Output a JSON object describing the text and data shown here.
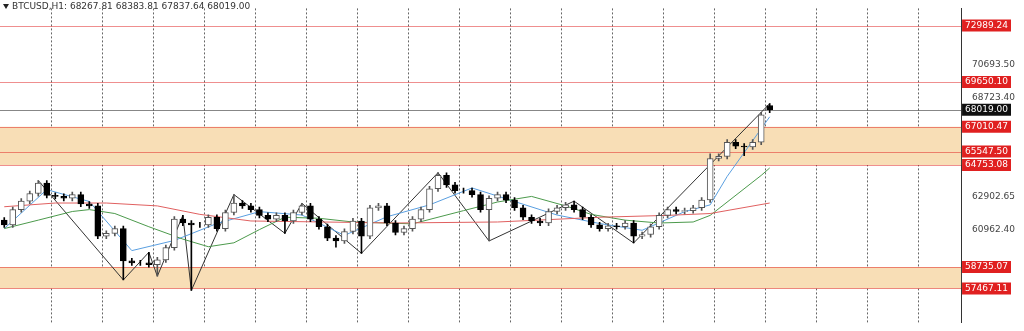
{
  "chart_data": {
    "type": "candlestick",
    "title": "BTCUSD,H1: 68267.81 68383.81 67837.64 68019.00",
    "categories": [
      null,
      null,
      null,
      null,
      null,
      null,
      null,
      null,
      null,
      null,
      null,
      null,
      null,
      null,
      null,
      null,
      null,
      null,
      null,
      null,
      null,
      null,
      null,
      null,
      null,
      null,
      null,
      null,
      null,
      null,
      null,
      null,
      null,
      null,
      null,
      null,
      null,
      null,
      null,
      null,
      null,
      null,
      null,
      null,
      null,
      null,
      null,
      null,
      null,
      null,
      null,
      null,
      null,
      null,
      null,
      null,
      null,
      null,
      null,
      null,
      null,
      null,
      null,
      null,
      null,
      null,
      null,
      null,
      null,
      null,
      null,
      null,
      null,
      null,
      null,
      null,
      null,
      null,
      null,
      null,
      null,
      null,
      null,
      null,
      null,
      null,
      null,
      null,
      null,
      null,
      null,
      null,
      null,
      null,
      null,
      null,
      null,
      null,
      null,
      null,
      null,
      null,
      null,
      null,
      null,
      null,
      null,
      null,
      null,
      null,
      null,
      null,
      null
    ],
    "ohlc": [
      [
        61500,
        61650,
        61070,
        61220
      ],
      [
        61220,
        62270,
        61070,
        62120
      ],
      [
        62120,
        62770,
        61970,
        62620
      ],
      [
        62620,
        63220,
        62470,
        63070
      ],
      [
        63070,
        63840,
        62920,
        63690
      ],
      [
        63690,
        63840,
        62810,
        62960
      ],
      [
        62960,
        63110,
        62750,
        62900
      ],
      [
        62900,
        63050,
        62640,
        62790
      ],
      [
        62790,
        63160,
        62640,
        63010
      ],
      [
        63010,
        63160,
        62300,
        62450
      ],
      [
        62450,
        62600,
        62190,
        62340
      ],
      [
        62340,
        62490,
        60400,
        60550
      ],
      [
        60550,
        60870,
        60400,
        60720
      ],
      [
        60720,
        61150,
        60570,
        61000
      ],
      [
        61000,
        61150,
        57970,
        59090
      ],
      [
        59090,
        59240,
        58830,
        58980
      ],
      [
        58980,
        59130,
        58830,
        58980
      ],
      [
        58980,
        59600,
        58720,
        58870
      ],
      [
        58870,
        59300,
        58190,
        59150
      ],
      [
        59150,
        60030,
        59000,
        59880
      ],
      [
        59880,
        61710,
        59730,
        61560
      ],
      [
        61560,
        61780,
        61180,
        61330
      ],
      [
        61330,
        61480,
        57350,
        61220
      ],
      [
        61220,
        61370,
        61070,
        61220
      ],
      [
        61220,
        61820,
        61070,
        61670
      ],
      [
        61670,
        61820,
        60850,
        61000
      ],
      [
        61000,
        62100,
        60850,
        61950
      ],
      [
        61950,
        63010,
        61800,
        62510
      ],
      [
        62510,
        62660,
        62190,
        62340
      ],
      [
        62340,
        62490,
        61970,
        62120
      ],
      [
        62120,
        62270,
        61630,
        61780
      ],
      [
        61780,
        61930,
        61410,
        61560
      ],
      [
        61560,
        61930,
        61410,
        61780
      ],
      [
        61780,
        61930,
        60720,
        61450
      ],
      [
        61450,
        62100,
        61300,
        61950
      ],
      [
        61950,
        62490,
        61800,
        62340
      ],
      [
        62340,
        62490,
        61410,
        61560
      ],
      [
        61560,
        61710,
        60960,
        61110
      ],
      [
        61110,
        61260,
        60290,
        60440
      ],
      [
        60440,
        60590,
        59900,
        60270
      ],
      [
        60270,
        60980,
        60120,
        60830
      ],
      [
        60830,
        61600,
        60680,
        61450
      ],
      [
        61450,
        61600,
        59540,
        60550
      ],
      [
        60550,
        62380,
        60400,
        62230
      ],
      [
        62230,
        62490,
        62080,
        62340
      ],
      [
        62340,
        62490,
        61180,
        61330
      ],
      [
        61330,
        61480,
        60620,
        60770
      ],
      [
        60770,
        61150,
        60620,
        61000
      ],
      [
        61000,
        61710,
        60850,
        61560
      ],
      [
        61560,
        62270,
        61410,
        62120
      ],
      [
        62120,
        63500,
        61970,
        63350
      ],
      [
        63350,
        64300,
        63200,
        64140
      ],
      [
        64140,
        64290,
        63430,
        63580
      ],
      [
        63580,
        63730,
        63090,
        63240
      ],
      [
        63240,
        63390,
        63090,
        63240
      ],
      [
        63240,
        63390,
        62860,
        63010
      ],
      [
        63010,
        63160,
        61970,
        62120
      ],
      [
        62120,
        62940,
        60270,
        62790
      ],
      [
        62790,
        63160,
        62640,
        63010
      ],
      [
        63010,
        63160,
        62530,
        62680
      ],
      [
        62680,
        62830,
        62080,
        62230
      ],
      [
        62230,
        62380,
        61520,
        61670
      ],
      [
        61670,
        61820,
        61300,
        61450
      ],
      [
        61450,
        61600,
        61180,
        61330
      ],
      [
        61330,
        62160,
        61180,
        62010
      ],
      [
        62010,
        62380,
        61860,
        62230
      ],
      [
        62230,
        62550,
        62080,
        62400
      ],
      [
        62400,
        62620,
        61970,
        62120
      ],
      [
        62120,
        62270,
        61520,
        61670
      ],
      [
        61670,
        61820,
        61070,
        61220
      ],
      [
        61220,
        61370,
        60850,
        61000
      ],
      [
        61000,
        61310,
        60850,
        61160
      ],
      [
        61160,
        61310,
        60960,
        61110
      ],
      [
        61110,
        61480,
        60960,
        61330
      ],
      [
        61330,
        61480,
        60150,
        60550
      ],
      [
        60550,
        60800,
        60400,
        60650
      ],
      [
        60650,
        61260,
        60500,
        61110
      ],
      [
        61110,
        61930,
        60960,
        61780
      ],
      [
        61780,
        62270,
        61630,
        62120
      ],
      [
        62120,
        62270,
        61860,
        62010
      ],
      [
        62010,
        62210,
        61860,
        62060
      ],
      [
        62060,
        62380,
        61910,
        62230
      ],
      [
        62230,
        62830,
        62080,
        62680
      ],
      [
        62700,
        65420,
        62550,
        65140
      ],
      [
        65140,
        65410,
        64990,
        65260
      ],
      [
        65260,
        66250,
        65110,
        66100
      ],
      [
        66100,
        66250,
        65720,
        65870
      ],
      [
        65870,
        66020,
        65310,
        65820
      ],
      [
        65820,
        66250,
        65670,
        66100
      ],
      [
        66100,
        67870,
        65950,
        67720
      ],
      [
        68267.81,
        68383.81,
        67837.64,
        68019.0
      ],
      null,
      null,
      null,
      null,
      null,
      null,
      null,
      null,
      null,
      null,
      null,
      null,
      null,
      null,
      null,
      null,
      null,
      null,
      null,
      null,
      null,
      null
    ],
    "colors": [
      "#000000",
      "#555555",
      "#555555",
      "#555555",
      "#555555",
      "#000000",
      "#000000",
      "#000000",
      "#555555",
      "#000000",
      "#000000",
      "#000000",
      "#555555",
      "#555555",
      "#000000",
      "#000000",
      "#000000",
      "#000000",
      "#555555",
      "#555555",
      "#555555",
      "#000000",
      "#000000",
      "#000000",
      "#555555",
      "#000000",
      "#555555",
      "#555555",
      "#000000",
      "#000000",
      "#000000",
      "#000000",
      "#555555",
      "#000000",
      "#555555",
      "#555555",
      "#000000",
      "#000000",
      "#000000",
      "#000000",
      "#555555",
      "#555555",
      "#000000",
      "#555555",
      "#555555",
      "#000000",
      "#000000",
      "#555555",
      "#555555",
      "#555555",
      "#555555",
      "#555555",
      "#000000",
      "#000000",
      "#000000",
      "#000000",
      "#000000",
      "#555555",
      "#555555",
      "#000000",
      "#000000",
      "#000000",
      "#000000",
      "#000000",
      "#555555",
      "#555555",
      "#555555",
      "#000000",
      "#000000",
      "#000000",
      "#000000",
      "#555555",
      "#000000",
      "#555555",
      "#000000",
      "#555555",
      "#555555",
      "#555555",
      "#555555",
      "#000000",
      "#555555",
      "#555555",
      "#555555",
      "#555555",
      "#555555",
      "#555555",
      "#000000",
      "#000000",
      "#555555",
      "#555555",
      "#000000",
      null,
      null,
      null,
      null,
      null,
      null,
      null,
      null,
      null,
      null,
      null,
      null,
      null,
      null,
      null,
      null,
      null,
      null,
      null,
      null,
      null,
      null
    ],
    "series": [
      {
        "type": "line",
        "color": "#e06060",
        "values": [
          62290,
          null,
          null,
          null,
          null,
          null,
          62510,
          null,
          null,
          null,
          null,
          null,
          62510,
          null,
          null,
          null,
          null,
          null,
          62340,
          null,
          null,
          null,
          null,
          61840,
          null,
          null,
          null,
          null,
          null,
          61450,
          null,
          null,
          null,
          null,
          null,
          null,
          null,
          null,
          null,
          null,
          null,
          null,
          null,
          null,
          null,
          null,
          61330,
          null,
          null,
          null,
          null,
          null,
          null,
          null,
          null,
          null,
          null,
          null,
          61390,
          null,
          null,
          null,
          null,
          null,
          null,
          null,
          null,
          null,
          null,
          null,
          61670,
          null,
          null,
          null,
          null,
          null,
          null,
          null,
          61780,
          null,
          null,
          null,
          null,
          61890,
          null,
          null,
          null,
          null,
          null,
          null,
          62510,
          null,
          null,
          null,
          null,
          null,
          null,
          null,
          null,
          null,
          null,
          null,
          null,
          null,
          null,
          null,
          null,
          null,
          null,
          null,
          null,
          null,
          null
        ]
      },
      {
        "type": "line",
        "color": "#4c9a4c",
        "values": [
          61000,
          null,
          null,
          null,
          61500,
          null,
          null,
          null,
          62010,
          null,
          62120,
          null,
          null,
          61890,
          null,
          null,
          null,
          61110,
          null,
          null,
          null,
          60380,
          null,
          null,
          59930,
          null,
          null,
          60160,
          null,
          null,
          60940,
          null,
          null,
          61670,
          null,
          null,
          null,
          61610,
          null,
          null,
          null,
          61390,
          null,
          null,
          null,
          null,
          null,
          null,
          61280,
          null,
          null,
          null,
          null,
          null,
          62060,
          null,
          null,
          null,
          62570,
          null,
          null,
          null,
          62900,
          null,
          null,
          null,
          62340,
          null,
          null,
          61840,
          null,
          null,
          null,
          61500,
          null,
          null,
          null,
          61330,
          null,
          null,
          null,
          61390,
          null,
          61780,
          null,
          null,
          null,
          null,
          null,
          64140,
          64580,
          null,
          null,
          null,
          null,
          null,
          null,
          null,
          null,
          null,
          null,
          null,
          null,
          null,
          null,
          null,
          null,
          null,
          null,
          null,
          null,
          null,
          null
        ]
      },
      {
        "type": "line",
        "color": "#5a9fe0",
        "values": [
          61000,
          null,
          null,
          null,
          null,
          63300,
          null,
          null,
          null,
          null,
          62600,
          null,
          null,
          null,
          null,
          59700,
          null,
          null,
          null,
          null,
          60300,
          null,
          null,
          null,
          null,
          61300,
          null,
          null,
          null,
          null,
          62000,
          null,
          null,
          null,
          null,
          61800,
          null,
          null,
          null,
          null,
          60600,
          null,
          null,
          null,
          null,
          61700,
          null,
          null,
          null,
          null,
          62400,
          null,
          null,
          null,
          null,
          63400,
          null,
          null,
          null,
          null,
          62600,
          null,
          null,
          null,
          null,
          61800,
          null,
          null,
          null,
          null,
          61300,
          null,
          null,
          null,
          null,
          60900,
          null,
          null,
          null,
          null,
          62000,
          null,
          null,
          62400,
          null,
          64080,
          null,
          null,
          null,
          null,
          67600,
          null,
          null,
          null,
          null,
          null,
          null,
          null,
          null,
          null,
          null,
          null,
          null,
          null,
          null,
          null,
          null,
          null,
          null,
          null,
          null,
          null,
          null
        ]
      },
      {
        "type": "line",
        "color": "#333333",
        "values": [
          null,
          null,
          null,
          null,
          63840,
          null,
          null,
          null,
          null,
          null,
          null,
          null,
          null,
          null,
          57970,
          null,
          null,
          59600,
          58190,
          null,
          null,
          61780,
          57350,
          null,
          null,
          null,
          null,
          63010,
          null,
          null,
          null,
          null,
          null,
          60720,
          null,
          62490,
          null,
          null,
          null,
          null,
          null,
          null,
          59540,
          null,
          null,
          null,
          null,
          null,
          null,
          null,
          null,
          64300,
          null,
          null,
          null,
          null,
          null,
          60270,
          null,
          null,
          null,
          null,
          null,
          null,
          null,
          null,
          null,
          62620,
          null,
          null,
          null,
          null,
          null,
          null,
          60150,
          null,
          null,
          null,
          null,
          null,
          null,
          null,
          null,
          null,
          null,
          null,
          null,
          null,
          null,
          null,
          68380,
          null,
          null,
          null,
          null,
          null,
          null,
          null,
          null,
          null,
          null,
          null,
          null,
          null,
          null,
          null,
          null,
          null,
          null,
          null,
          null,
          null,
          null
        ]
      }
    ],
    "ylim": [
      55450,
      74000
    ],
    "yticks": [
      {
        "value": 70693.5,
        "label": "70693.50"
      },
      {
        "value": 68723.4,
        "label": "68723.40"
      },
      62902.65,
      {
        "value": 60962.4,
        "label": "60962.40"
      }
    ],
    "tick_labels": "y",
    "grid": "x",
    "legend": false,
    "marker": "none",
    "bands": [
      {
        "axis": "y",
        "from": 64753.08,
        "to": 67010.47,
        "color": "#f8deb6"
      },
      {
        "axis": "y",
        "from": 57467.11,
        "to": 58735.07,
        "color": "#f8deb6"
      }
    ],
    "ref_lines": [
      {
        "axis": "y",
        "value": 72989.24,
        "label": "72989.24",
        "color": "#e02020"
      },
      {
        "axis": "y",
        "value": 69650.1,
        "label": "69650.10",
        "color": "#e02020"
      },
      {
        "axis": "y",
        "value": 68019.0,
        "label": "68019.00",
        "color": "#101010"
      },
      {
        "axis": "y",
        "value": 67010.47,
        "label": "67010.47",
        "color": "#e02020"
      },
      {
        "axis": "y",
        "value": 65547.5,
        "label": "65547.50",
        "color": "#e02020"
      },
      {
        "axis": "y",
        "value": 64753.08,
        "label": "64753.08",
        "color": "#e02020"
      },
      {
        "axis": "y",
        "value": 58735.07,
        "label": "58735.07",
        "color": "#e02020"
      },
      {
        "axis": "y",
        "value": 57467.11,
        "label": "57467.11",
        "color": "#e02020"
      }
    ]
  }
}
